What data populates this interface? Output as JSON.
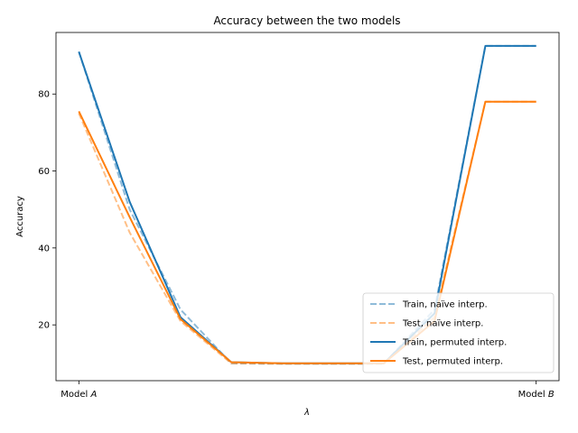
{
  "chart_data": {
    "type": "line",
    "title": "Accuracy between the two models",
    "xlabel": "λ",
    "ylabel": "Accuracy",
    "x": [
      0,
      0.1111,
      0.2222,
      0.3333,
      0.4444,
      0.5556,
      0.6667,
      0.7778,
      0.8889,
      1
    ],
    "xlim": [
      -0.05,
      1.05
    ],
    "ylim": [
      5.5,
      96
    ],
    "x_ticks": [
      {
        "value": 0,
        "label": "Model A"
      },
      {
        "value": 1,
        "label": "Model B"
      }
    ],
    "y_ticks": [
      20,
      40,
      60,
      80
    ],
    "grid": false,
    "legend_position": "lower-right",
    "series": [
      {
        "name": "Train, naïve interp.",
        "color": "#1f77b4",
        "style": "dashed",
        "alpha": 0.5,
        "values": [
          91,
          50,
          24,
          10,
          9.9,
          9.9,
          9.9,
          24,
          92.5,
          92.5
        ]
      },
      {
        "name": "Test, naïve interp.",
        "color": "#ff7f0e",
        "style": "dashed",
        "alpha": 0.5,
        "values": [
          75,
          44,
          21,
          10,
          9.9,
          9.9,
          9.9,
          22,
          78,
          78
        ]
      },
      {
        "name": "Train, permuted interp.",
        "color": "#1f77b4",
        "style": "solid",
        "alpha": 1,
        "values": [
          91,
          52,
          22,
          10.3,
          10,
          10,
          10,
          23,
          92.5,
          92.5
        ]
      },
      {
        "name": "Test, permuted interp.",
        "color": "#ff7f0e",
        "style": "solid",
        "alpha": 1,
        "values": [
          75.5,
          48,
          21.5,
          10.3,
          10,
          10,
          10,
          21,
          78,
          78
        ]
      }
    ]
  }
}
